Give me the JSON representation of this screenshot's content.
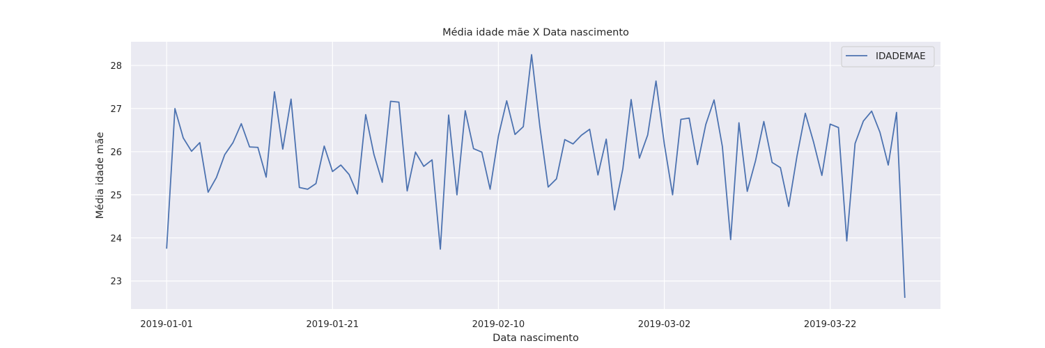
{
  "chart_data": {
    "type": "line",
    "title": "Média idade mãe X Data nascimento",
    "xlabel": "Data nascimento",
    "ylabel": "Média idade mãe",
    "x_tick_labels": [
      "2019-01-01",
      "2019-01-21",
      "2019-02-10",
      "2019-03-02",
      "2019-03-22"
    ],
    "x_tick_days": [
      0,
      20,
      40,
      60,
      80
    ],
    "xlim_days": [
      -4.3,
      93.3
    ],
    "y_ticks": [
      23,
      24,
      25,
      26,
      27,
      28
    ],
    "y_tick_labels": [
      "23",
      "24",
      "25",
      "26",
      "27",
      "28"
    ],
    "ylim": [
      22.35,
      28.55
    ],
    "grid": true,
    "legend_position": "top-right",
    "colors": {
      "background": "#eaeaf2",
      "grid": "#ffffff",
      "line": "#4c72b0",
      "text": "#262626"
    },
    "series": [
      {
        "name": "IDADEMAE",
        "values": [
          23.75,
          27.0,
          26.32,
          26.01,
          26.21,
          25.06,
          25.4,
          25.93,
          26.21,
          26.65,
          26.11,
          26.1,
          25.41,
          27.39,
          26.06,
          27.22,
          25.17,
          25.13,
          25.26,
          26.13,
          25.54,
          25.69,
          25.47,
          25.02,
          26.86,
          25.93,
          25.29,
          27.17,
          27.15,
          25.09,
          25.99,
          25.66,
          25.81,
          23.74,
          26.85,
          25.0,
          26.95,
          26.07,
          25.99,
          25.13,
          26.36,
          27.18,
          26.4,
          26.58,
          28.25,
          26.58,
          25.18,
          25.37,
          26.28,
          26.18,
          26.38,
          26.52,
          25.46,
          26.29,
          24.65,
          25.6,
          27.21,
          25.85,
          26.39,
          27.64,
          26.18,
          25.0,
          26.75,
          26.78,
          25.7,
          26.63,
          27.2,
          26.12,
          23.96,
          26.67,
          25.08,
          25.79,
          26.7,
          25.75,
          25.63,
          24.73,
          25.9,
          26.89,
          26.22,
          25.45,
          26.64,
          26.56,
          23.93,
          26.19,
          26.71,
          26.94,
          26.45,
          25.69,
          26.91,
          22.61
        ]
      }
    ]
  }
}
